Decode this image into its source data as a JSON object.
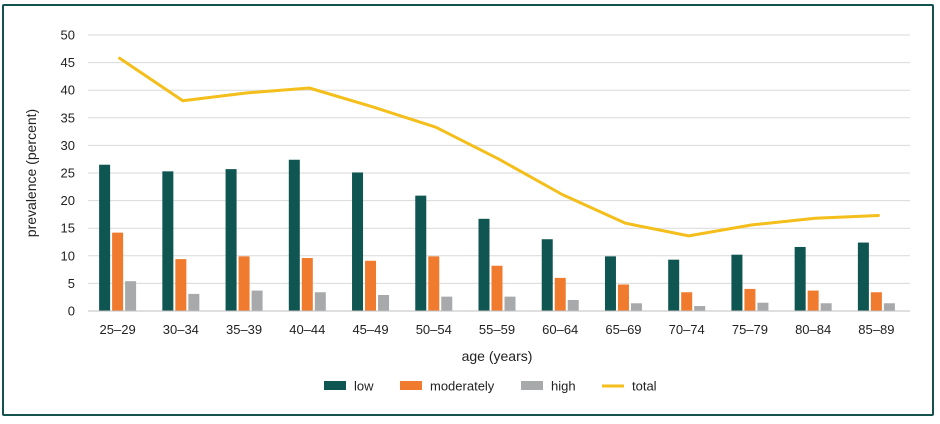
{
  "chart_data": {
    "type": "bar",
    "title": "",
    "xlabel": "age (years)",
    "ylabel": "prevalence (percent)",
    "ylim": [
      0,
      50
    ],
    "yticks": [
      0,
      5,
      10,
      15,
      20,
      25,
      30,
      35,
      40,
      45,
      50
    ],
    "categories": [
      "25–29",
      "30–34",
      "35–39",
      "40–44",
      "45–49",
      "50–54",
      "55–59",
      "60–64",
      "65–69",
      "70–74",
      "75–79",
      "80–84",
      "85–89"
    ],
    "series": [
      {
        "name": "low",
        "kind": "bar",
        "color": "#0f5551",
        "values": [
          26.5,
          25.3,
          25.7,
          27.4,
          25.1,
          20.9,
          16.7,
          13.0,
          9.9,
          9.3,
          10.2,
          11.6,
          12.4
        ]
      },
      {
        "name": "moderately",
        "kind": "bar",
        "color": "#f07b2f",
        "values": [
          14.2,
          9.4,
          9.9,
          9.6,
          9.1,
          9.9,
          8.2,
          6.0,
          4.8,
          3.4,
          4.0,
          3.7,
          3.4
        ]
      },
      {
        "name": "high",
        "kind": "bar",
        "color": "#a7a9ab",
        "values": [
          5.4,
          3.1,
          3.7,
          3.4,
          2.9,
          2.6,
          2.6,
          2.0,
          1.4,
          0.9,
          1.5,
          1.4,
          1.4
        ]
      },
      {
        "name": "total",
        "kind": "line",
        "color": "#f4be1b",
        "values": [
          45.8,
          38.1,
          39.5,
          40.4,
          37.0,
          33.3,
          27.5,
          21.1,
          15.9,
          13.6,
          15.6,
          16.8,
          17.3
        ]
      }
    ],
    "legend_position": "bottom-center",
    "grid": true
  }
}
